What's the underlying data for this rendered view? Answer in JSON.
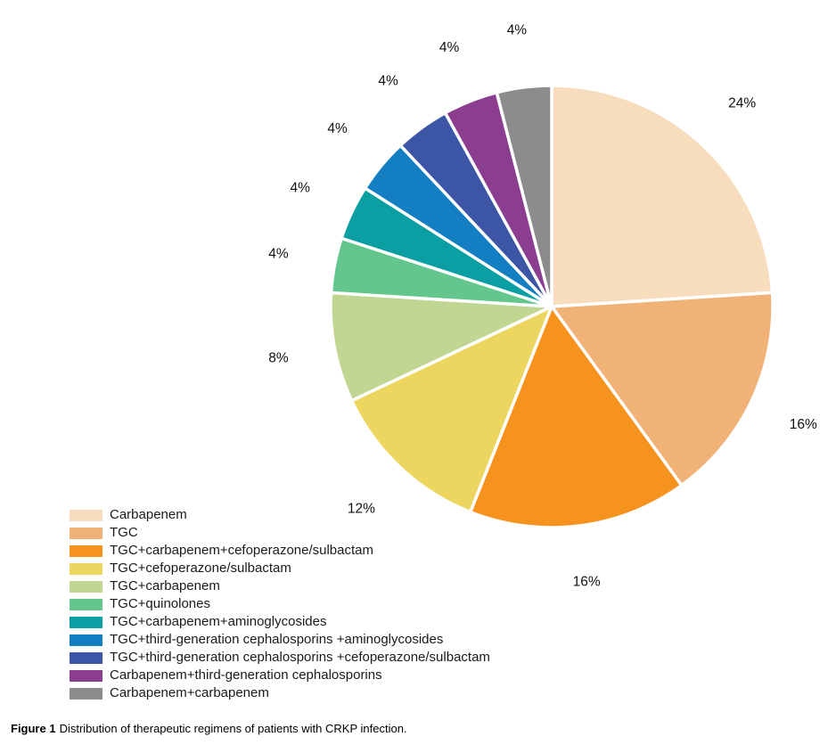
{
  "figure": {
    "caption_label": "Figure 1",
    "caption_text": "Distribution of therapeutic regimens of patients with CRKP infection."
  },
  "chart_data": {
    "type": "pie",
    "title": "",
    "unit": "percent",
    "start_angle_deg": 0,
    "direction": "clockwise",
    "slice_border_color": "#ffffff",
    "label_color": "#111111",
    "legend_position": "bottom-left",
    "slices": [
      {
        "label": "Carbapenem",
        "value": 24,
        "pct_label": "24%",
        "color": "#F8DCBE"
      },
      {
        "label": "TGC",
        "value": 16,
        "pct_label": "16%",
        "color": "#F0B277"
      },
      {
        "label": "TGC+carbapenem+cefoperazone/sulbactam",
        "value": 16,
        "pct_label": "16%",
        "color": "#F6921E"
      },
      {
        "label": "TGC+cefoperazone/sulbactam",
        "value": 12,
        "pct_label": "12%",
        "color": "#ECD65F"
      },
      {
        "label": "TGC+carbapenem",
        "value": 8,
        "pct_label": "8%",
        "color": "#C2D693"
      },
      {
        "label": "TGC+quinolones",
        "value": 4,
        "pct_label": "4%",
        "color": "#63C68C"
      },
      {
        "label": "TGC+carbapenem+aminoglycosides",
        "value": 4,
        "pct_label": "4%",
        "color": "#0B9EA2"
      },
      {
        "label": "TGC+third-generation cephalosporins +aminoglycosides",
        "value": 4,
        "pct_label": "4%",
        "color": "#137FC2"
      },
      {
        "label": "TGC+third-generation cephalosporins +cefoperazone/sulbactam",
        "value": 4,
        "pct_label": "4%",
        "color": "#3C55A4"
      },
      {
        "label": "Carbapenem+third-generation cephalosporins",
        "value": 4,
        "pct_label": "4%",
        "color": "#8B3D90"
      },
      {
        "label": "Carbapenem+carbapenem",
        "value": 4,
        "pct_label": "4%",
        "color": "#8C8C8E"
      }
    ]
  }
}
